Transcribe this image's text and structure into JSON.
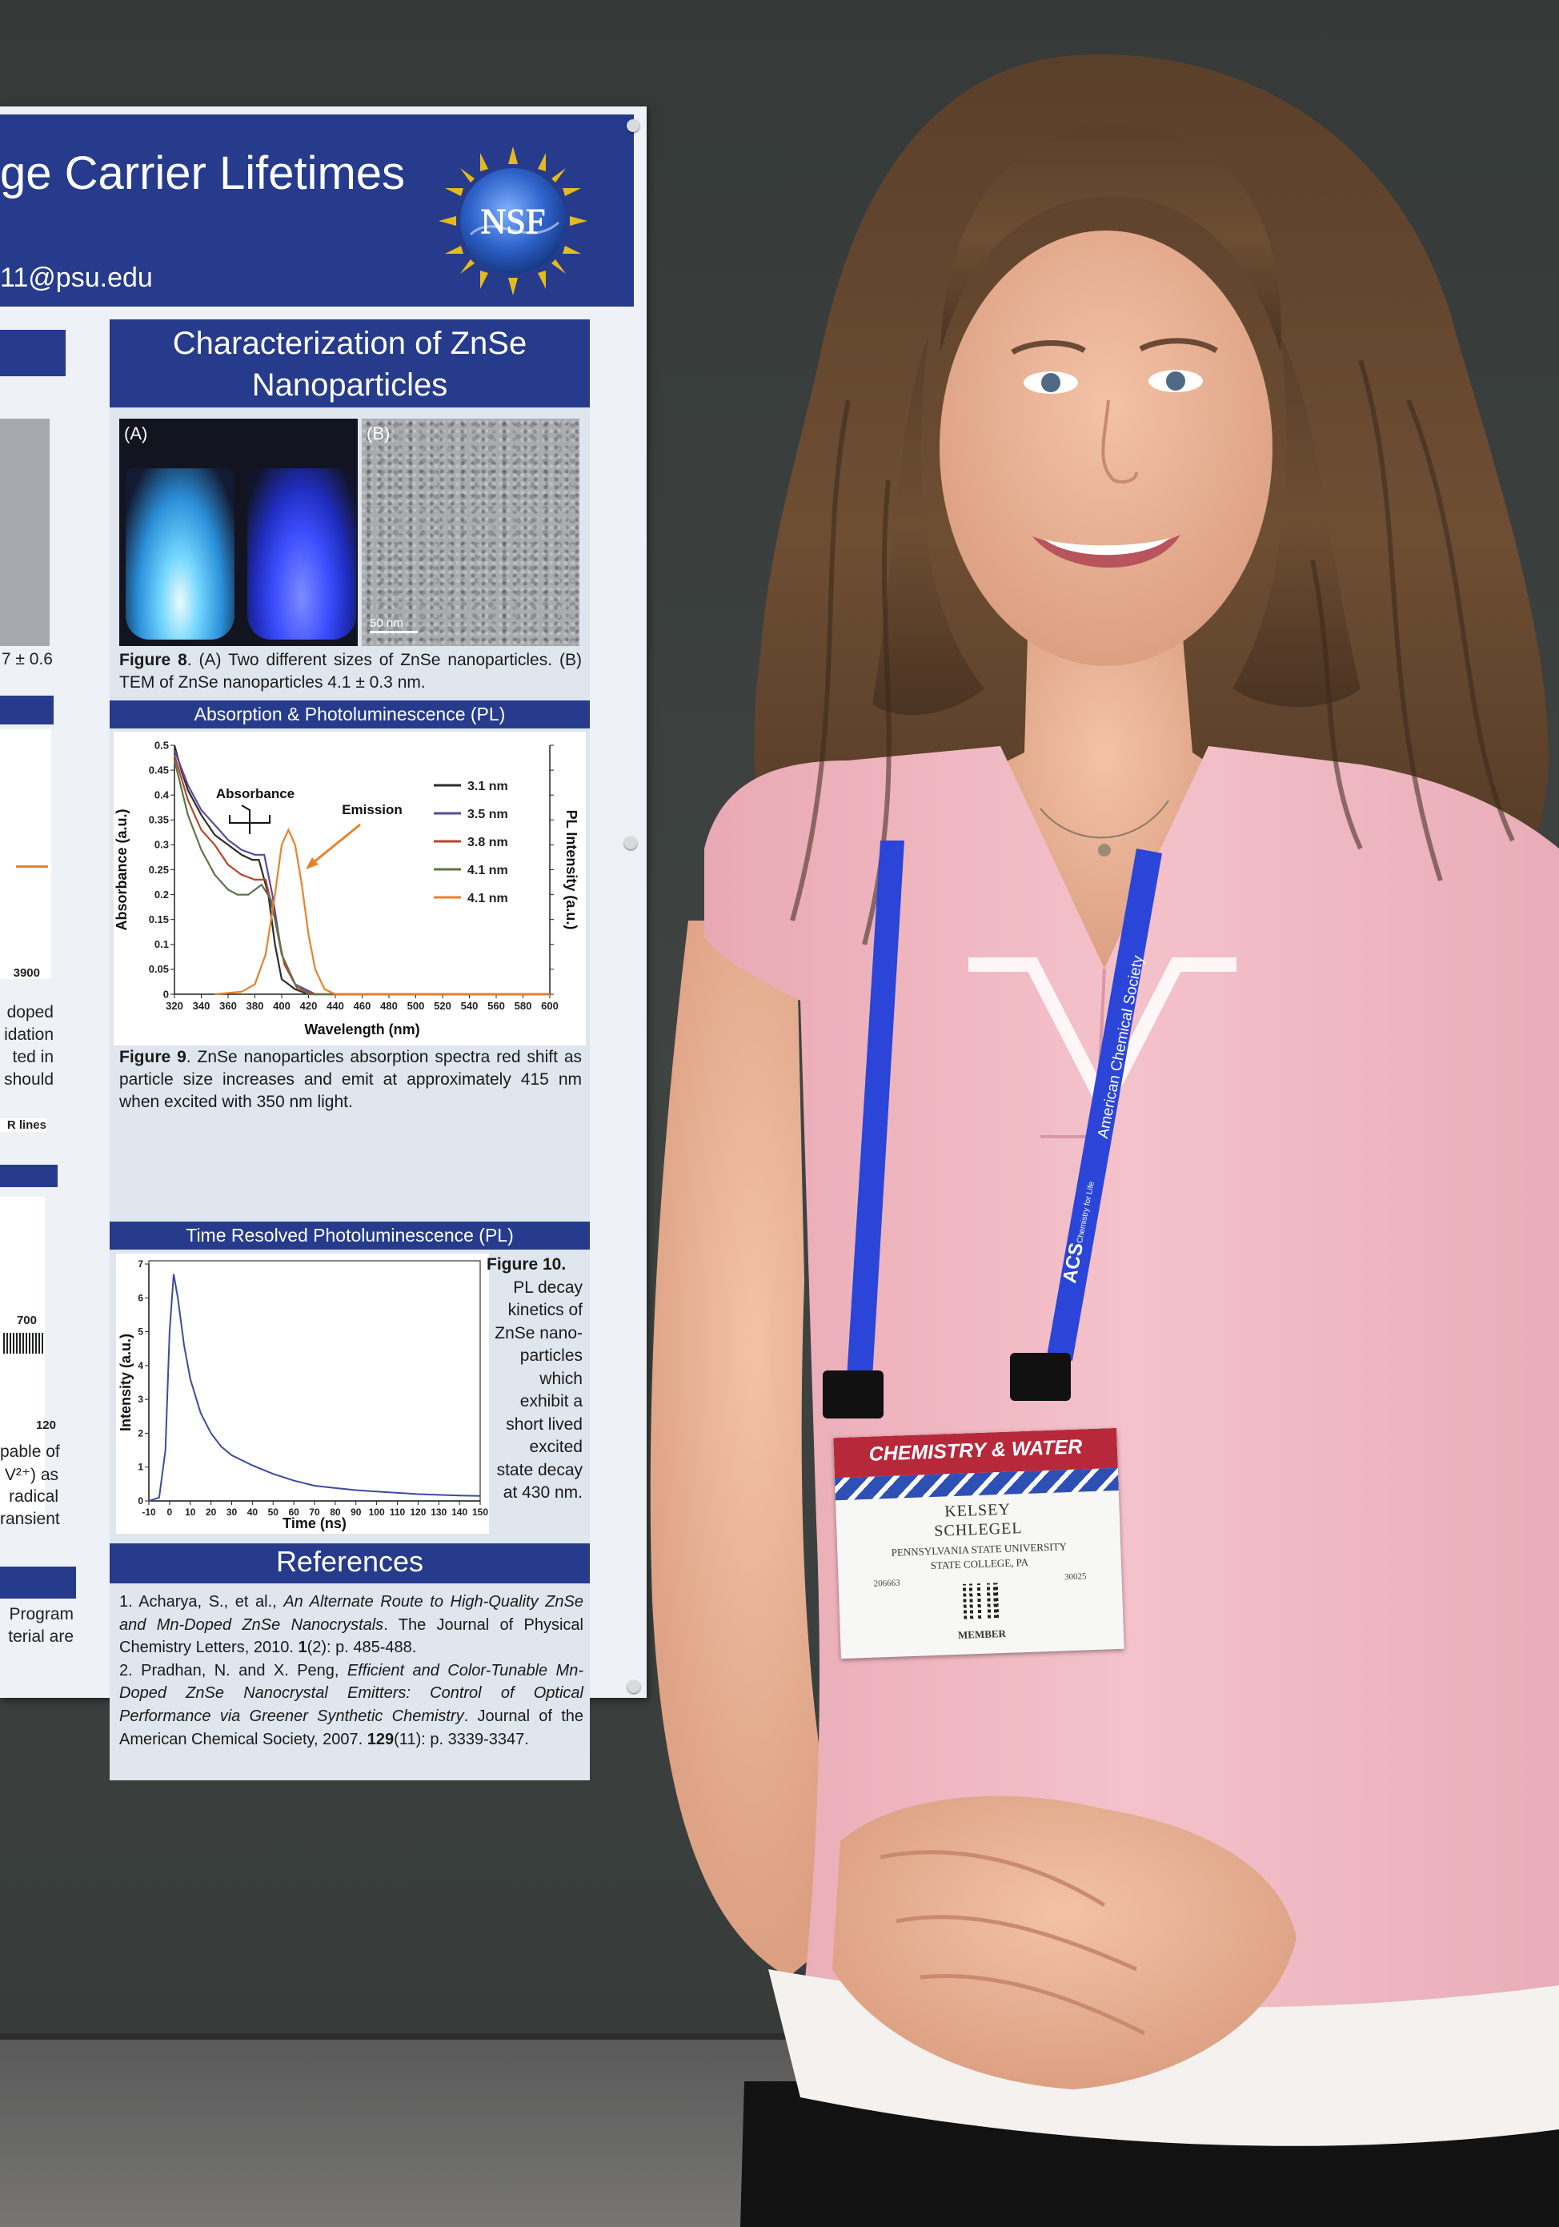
{
  "poster": {
    "title_fragment": "ge Carrier Lifetimes",
    "email_fragment": "11@psu.edu",
    "logo_text": "NSF",
    "left_fragments": [
      "7 ± 0.6",
      "3900",
      "doped",
      "idation",
      "ted in",
      "should",
      "R lines",
      "700",
      "120",
      "pable of",
      "V²⁺) as",
      "radical",
      "ransient",
      "Program",
      "terial are"
    ],
    "section1": {
      "heading_line1": "Characterization of ZnSe",
      "heading_line2": "Nanoparticles",
      "image_a_label": "(A)",
      "image_b_label": "(B)",
      "scale_bar": "50 nm",
      "fig8_label": "Figure 8",
      "fig8_text": ". (A) Two different sizes of ZnSe nanoparticles. (B) TEM of ZnSe nanoparticles 4.1 ± 0.3 nm."
    },
    "section2": {
      "heading": "Absorption & Photoluminescence (PL)",
      "fig9_label": "Figure 9",
      "fig9_text": ". ZnSe nanoparticles absorption spectra red shift as particle size increases and emit at approximately 415 nm when excited with 350 nm light."
    },
    "section3": {
      "heading": "Time Resolved Photoluminescence (PL)",
      "fig10_lines": [
        "Figure 10.",
        "PL decay",
        "kinetics of",
        "ZnSe nano-",
        "particles",
        "which",
        "exhibit a",
        "short lived",
        "excited",
        "state decay",
        "at 430 nm."
      ]
    },
    "references": {
      "heading": "References",
      "items": [
        {
          "num": "1.",
          "authors": "Acharya, S., et al., ",
          "title": "An Alternate Route to High-Quality ZnSe and Mn-Doped ZnSe Nanocrystals",
          "source": ". The Journal of Physical Chemistry Letters, 2010. ",
          "volume": "1",
          "pages": "(2): p. 485-488."
        },
        {
          "num": "2.",
          "authors": "Pradhan, N. and X. Peng, ",
          "title": "Efficient and Color-Tunable Mn-Doped ZnSe Nanocrystal Emitters: Control of Optical Performance via Greener Synthetic Chemistry",
          "source": ". Journal of the American Chemical Society, 2007. ",
          "volume": "129",
          "pages": "(11): p. 3339-3347."
        }
      ]
    }
  },
  "badge": {
    "event": "CHEMISTRY & WATER",
    "first_name": "KELSEY",
    "last_name": "SCHLEGEL",
    "institution": "PENNSYLVANIA STATE UNIVERSITY",
    "location": "STATE COLLEGE, PA",
    "id_left": "206663",
    "id_right": "30025",
    "category": "MEMBER"
  },
  "lanyard": {
    "org": "American Chemical Society",
    "acronym": "ACS",
    "tagline": "Chemistry for Life"
  },
  "colors": {
    "poster_navy": "#263b8c",
    "blouse_pink": "#f0b9c3",
    "lanyard_blue": "#2a45d8",
    "board": "#3a3f3d"
  },
  "chart_data": [
    {
      "type": "line",
      "xlabel": "Wavelength (nm)",
      "ylabel": "Absorbance (a.u.)",
      "y2label": "PL Intensity (a.u.)",
      "xlim": [
        320,
        600
      ],
      "ylim": [
        0,
        0.5
      ],
      "xticks": [
        320,
        340,
        360,
        380,
        400,
        420,
        440,
        460,
        480,
        500,
        520,
        540,
        560,
        580,
        600
      ],
      "yticks": [
        0,
        0.05,
        0.1,
        0.15,
        0.2,
        0.25,
        0.3,
        0.35,
        0.4,
        0.45,
        0.5
      ],
      "legend": "right",
      "annotations": [
        "Absorbance",
        "Emission"
      ],
      "series": [
        {
          "name": "3.1 nm",
          "color": "#2e2e2e",
          "points": [
            [
              320,
              0.5
            ],
            [
              325,
              0.45
            ],
            [
              330,
              0.41
            ],
            [
              340,
              0.36
            ],
            [
              350,
              0.32
            ],
            [
              360,
              0.3
            ],
            [
              370,
              0.28
            ],
            [
              378,
              0.27
            ],
            [
              383,
              0.27
            ],
            [
              390,
              0.2
            ],
            [
              395,
              0.1
            ],
            [
              400,
              0.03
            ],
            [
              410,
              0.01
            ],
            [
              420,
              0
            ],
            [
              600,
              0
            ]
          ]
        },
        {
          "name": "3.5 nm",
          "color": "#5a4aa0",
          "points": [
            [
              320,
              0.49
            ],
            [
              330,
              0.42
            ],
            [
              340,
              0.37
            ],
            [
              350,
              0.34
            ],
            [
              360,
              0.31
            ],
            [
              370,
              0.29
            ],
            [
              380,
              0.28
            ],
            [
              387,
              0.28
            ],
            [
              393,
              0.2
            ],
            [
              400,
              0.08
            ],
            [
              410,
              0.02
            ],
            [
              425,
              0
            ],
            [
              600,
              0
            ]
          ]
        },
        {
          "name": "3.8 nm",
          "color": "#b8452e",
          "points": [
            [
              320,
              0.48
            ],
            [
              330,
              0.39
            ],
            [
              340,
              0.33
            ],
            [
              350,
              0.3
            ],
            [
              360,
              0.26
            ],
            [
              370,
              0.24
            ],
            [
              380,
              0.23
            ],
            [
              388,
              0.23
            ],
            [
              395,
              0.15
            ],
            [
              402,
              0.06
            ],
            [
              412,
              0.01
            ],
            [
              425,
              0
            ],
            [
              600,
              0
            ]
          ]
        },
        {
          "name": "4.1 nm",
          "color": "#5f7448",
          "points": [
            [
              320,
              0.47
            ],
            [
              330,
              0.36
            ],
            [
              340,
              0.29
            ],
            [
              350,
              0.24
            ],
            [
              360,
              0.21
            ],
            [
              367,
              0.2
            ],
            [
              375,
              0.2
            ],
            [
              385,
              0.22
            ],
            [
              392,
              0.19
            ],
            [
              400,
              0.08
            ],
            [
              410,
              0.02
            ],
            [
              420,
              0
            ],
            [
              600,
              0
            ]
          ]
        },
        {
          "name": "4.1 nm",
          "color": "#e8822a",
          "points": [
            [
              350,
              0
            ],
            [
              370,
              0.005
            ],
            [
              380,
              0.02
            ],
            [
              388,
              0.08
            ],
            [
              395,
              0.2
            ],
            [
              400,
              0.3
            ],
            [
              405,
              0.33
            ],
            [
              410,
              0.3
            ],
            [
              415,
              0.22
            ],
            [
              420,
              0.12
            ],
            [
              425,
              0.05
            ],
            [
              432,
              0.01
            ],
            [
              440,
              0
            ],
            [
              600,
              0
            ]
          ]
        }
      ]
    },
    {
      "type": "line",
      "xlabel": "Time (ns)",
      "ylabel": "Intensity (a.u.)",
      "xlim": [
        -10,
        150
      ],
      "ylim": [
        0,
        7
      ],
      "xticks": [
        -10,
        0,
        10,
        20,
        30,
        40,
        50,
        60,
        70,
        80,
        90,
        100,
        110,
        120,
        130,
        140,
        150
      ],
      "yticks": [
        0,
        1,
        2,
        3,
        4,
        5,
        6,
        7
      ],
      "series": [
        {
          "color": "#3d4aa0",
          "points": [
            [
              -10,
              0
            ],
            [
              -5,
              0.1
            ],
            [
              -2,
              1.5
            ],
            [
              0,
              5
            ],
            [
              2,
              6.7
            ],
            [
              4,
              6
            ],
            [
              7,
              4.6
            ],
            [
              10,
              3.6
            ],
            [
              15,
              2.6
            ],
            [
              20,
              2.0
            ],
            [
              25,
              1.6
            ],
            [
              30,
              1.35
            ],
            [
              40,
              1.05
            ],
            [
              50,
              0.8
            ],
            [
              60,
              0.6
            ],
            [
              70,
              0.45
            ],
            [
              80,
              0.38
            ],
            [
              90,
              0.32
            ],
            [
              100,
              0.28
            ],
            [
              110,
              0.24
            ],
            [
              120,
              0.2
            ],
            [
              130,
              0.18
            ],
            [
              140,
              0.16
            ],
            [
              150,
              0.15
            ]
          ]
        }
      ]
    }
  ]
}
